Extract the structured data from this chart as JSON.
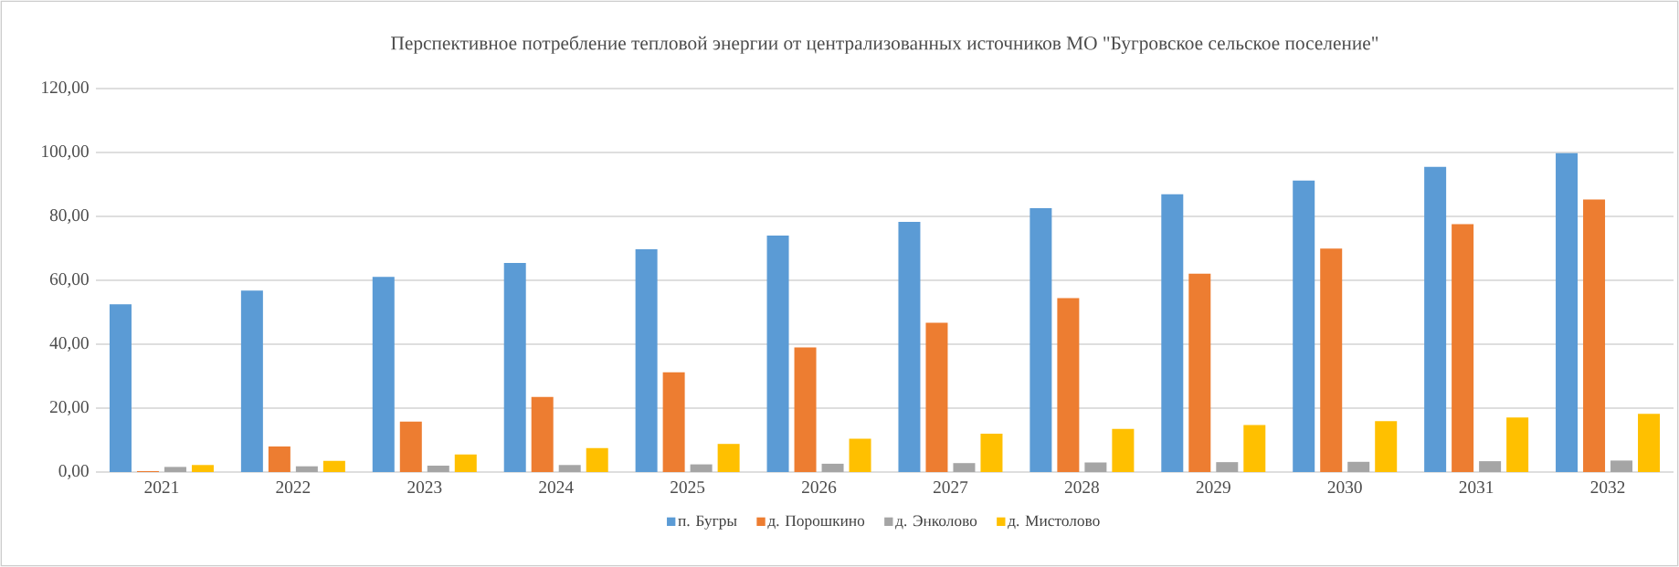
{
  "chart_data": {
    "type": "bar",
    "title": "Перспективное потребление тепловой энергии от централизованных источников МО \"Бугровское сельское поселение\"",
    "categories": [
      "2021",
      "2022",
      "2023",
      "2024",
      "2025",
      "2026",
      "2027",
      "2028",
      "2029",
      "2030",
      "2031",
      "2032"
    ],
    "series": [
      {
        "name": "п. Бугры",
        "color": "#5b9bd5",
        "values": [
          52.5,
          56.8,
          61.1,
          65.4,
          69.7,
          74.0,
          78.3,
          82.6,
          86.9,
          91.2,
          95.5,
          99.8
        ]
      },
      {
        "name": "д. Порошкино",
        "color": "#ed7d31",
        "values": [
          0.3,
          8.0,
          15.8,
          23.5,
          31.2,
          39.0,
          46.7,
          54.4,
          62.1,
          69.9,
          77.6,
          85.3
        ]
      },
      {
        "name": "д. Энколово",
        "color": "#a5a5a5",
        "values": [
          1.6,
          1.8,
          2.0,
          2.2,
          2.4,
          2.6,
          2.8,
          3.0,
          3.1,
          3.2,
          3.4,
          3.6
        ]
      },
      {
        "name": "д. Мистолово",
        "color": "#ffc000",
        "values": [
          2.2,
          3.5,
          5.5,
          7.5,
          8.8,
          10.4,
          12.0,
          13.5,
          14.7,
          15.9,
          17.1,
          18.2
        ]
      }
    ],
    "ylim": [
      0,
      120
    ],
    "yticks": [
      {
        "value": 0,
        "label": "0,00"
      },
      {
        "value": 20,
        "label": "20,00"
      },
      {
        "value": 40,
        "label": "40,00"
      },
      {
        "value": 60,
        "label": "60,00"
      },
      {
        "value": 80,
        "label": "80,00"
      },
      {
        "value": 100,
        "label": "100,00"
      },
      {
        "value": 120,
        "label": "120,00"
      }
    ],
    "grid": "y",
    "legend": "bottom"
  }
}
